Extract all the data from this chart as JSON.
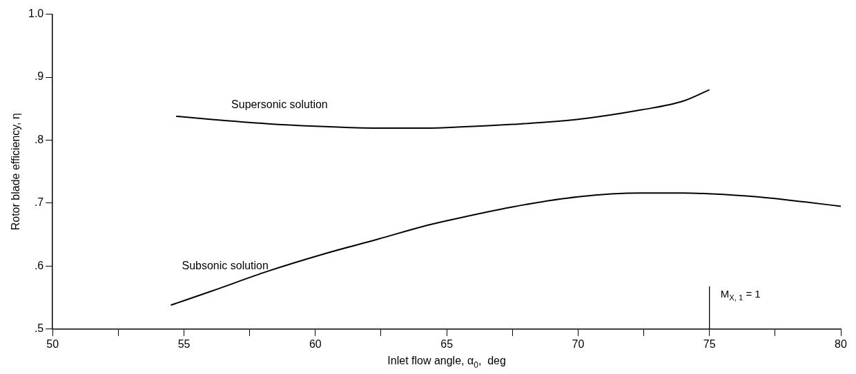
{
  "chart_data": {
    "type": "line",
    "xlabel": "Inlet flow angle, α$_{0}$,  deg",
    "ylabel": "Rotor blade efficiency, η",
    "series": [
      {
        "name": "Supersonic solution",
        "color": "#000000",
        "x": [
          54.7,
          56.0,
          58.2,
          60.0,
          61.3,
          63.0,
          64.0,
          65.0,
          67.5,
          70.0,
          72.4,
          74.0,
          75.0
        ],
        "values": [
          0.838,
          0.833,
          0.826,
          0.822,
          0.82,
          0.819,
          0.819,
          0.82,
          0.825,
          0.833,
          0.848,
          0.862,
          0.88
        ]
      },
      {
        "name": "Subsonic solution",
        "color": "#000000",
        "x": [
          54.5,
          56.1,
          58.2,
          60.3,
          62.4,
          64.1,
          65.0,
          67.5,
          70.0,
          72.4,
          74.0,
          76.5,
          78.6,
          80.0
        ],
        "values": [
          0.538,
          0.561,
          0.592,
          0.619,
          0.643,
          0.663,
          0.672,
          0.694,
          0.71,
          0.716,
          0.716,
          0.711,
          0.702,
          0.695
        ]
      }
    ],
    "xlim": [
      50,
      80
    ],
    "ylim": [
      0.5,
      1.0
    ],
    "xticks": [
      50,
      {
        "value": 52.5,
        "label": null
      },
      55,
      {
        "value": 57.5,
        "label": null
      },
      60,
      {
        "value": 62.5,
        "label": null
      },
      65,
      {
        "value": 67.5,
        "label": null
      },
      70,
      {
        "value": 72.5,
        "label": null
      },
      75,
      {
        "value": 77.5,
        "label": null
      },
      80
    ],
    "yticks": [
      {
        "value": 0.5,
        "label": ".5"
      },
      {
        "value": 0.6,
        "label": ".6"
      },
      {
        "value": 0.7,
        "label": ".7"
      },
      {
        "value": 0.8,
        "label": ".8"
      },
      {
        "value": 0.9,
        "label": ".9"
      },
      {
        "value": 1.0,
        "label": "1.0"
      }
    ],
    "ref_lines": [
      {
        "axis": "x",
        "value": 75
      }
    ],
    "annotations": [
      "M$_{X, 1}$ = 1"
    ],
    "grid": false,
    "legend": false,
    "marker": "none",
    "line_style": "solid"
  }
}
